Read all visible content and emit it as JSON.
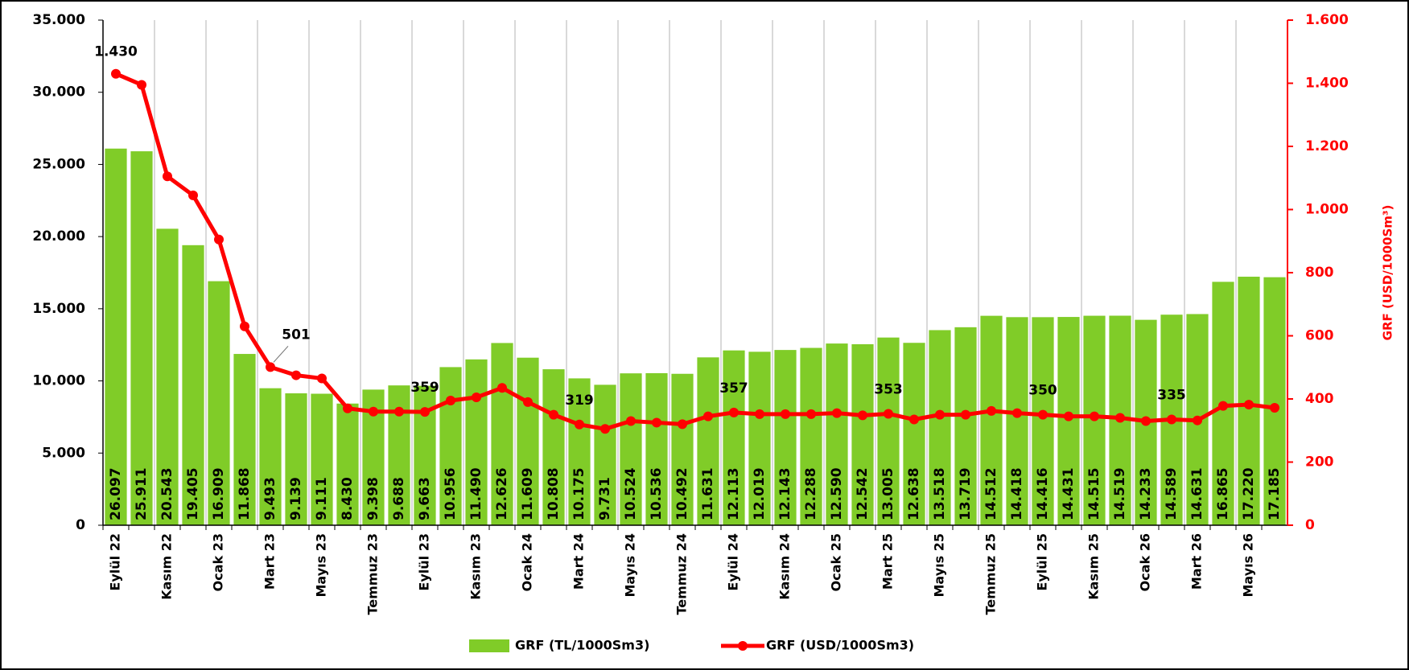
{
  "chart_data": {
    "type": "bar-line",
    "categories": [
      "Eylül 22",
      null,
      "Kasım 22",
      null,
      "Ocak 23",
      null,
      "Mart 23",
      null,
      "Mayıs 23",
      null,
      "Temmuz 23",
      null,
      "Eylül 23",
      null,
      "Kasım 23",
      null,
      "Ocak 24",
      null,
      "Mart 24",
      null,
      "Mayıs 24",
      null,
      "Temmuz 24",
      null,
      "Eylül 24",
      null,
      "Kasım 24",
      null,
      "Ocak 25",
      null,
      "Mart 25",
      null,
      "Mayıs 25",
      null,
      "Temmuz 25",
      null,
      "Eylül 25",
      null,
      "Kasım 25",
      null,
      "Ocak 26",
      null,
      "Mart 26",
      null,
      "Mayıs 26",
      null
    ],
    "series": [
      {
        "name": "GRF (TL/1000Sm3)",
        "color": "#80cc28",
        "type": "bar",
        "values": [
          26097,
          25911,
          20543,
          19405,
          16909,
          11868,
          9493,
          9139,
          9111,
          8430,
          9398,
          9688,
          9663,
          10956,
          11490,
          12626,
          11609,
          10808,
          10175,
          9731,
          10524,
          10536,
          10492,
          11631,
          12113,
          12019,
          12143,
          12288,
          12590,
          12542,
          13005,
          12638,
          13518,
          13719,
          14512,
          14418,
          14416,
          14431,
          14515,
          14519,
          14233,
          14589,
          14631,
          16865,
          17220,
          17185
        ],
        "value_labels": [
          "26.097",
          "25.911",
          "20.543",
          "19.405",
          "16.909",
          "11.868",
          "9.493",
          "9.139",
          "9.111",
          "8.430",
          "9.398",
          "9.688",
          "9.663",
          "10.956",
          "11.490",
          "12.626",
          "11.609",
          "10.808",
          "10.175",
          "9.731",
          "10.524",
          "10.536",
          "10.492",
          "11.631",
          "12.113",
          "12.019",
          "12.143",
          "12.288",
          "12.590",
          "12.542",
          "13.005",
          "12.638",
          "13.518",
          "13.719",
          "14.512",
          "14.418",
          "14.416",
          "14.431",
          "14.515",
          "14.519",
          "14.233",
          "14.589",
          "14.631",
          "16.865",
          "17.220",
          "17.185"
        ]
      },
      {
        "name": "GRF (USD/1000Sm3)",
        "color": "#ff0000",
        "type": "line",
        "axis": "y2",
        "values": [
          1430,
          1395,
          1105,
          1045,
          905,
          630,
          501,
          475,
          465,
          370,
          360,
          360,
          359,
          395,
          405,
          435,
          390,
          350,
          319,
          305,
          330,
          325,
          320,
          345,
          357,
          352,
          352,
          352,
          355,
          348,
          353,
          335,
          350,
          350,
          362,
          355,
          350,
          345,
          345,
          340,
          330,
          335,
          332,
          378,
          382,
          372
        ],
        "value_labels": [
          "1.430",
          null,
          null,
          null,
          null,
          null,
          "501",
          null,
          null,
          null,
          null,
          null,
          "359",
          null,
          null,
          null,
          null,
          null,
          "319",
          null,
          null,
          null,
          null,
          null,
          "357",
          null,
          null,
          null,
          null,
          null,
          "353",
          null,
          null,
          null,
          null,
          null,
          "350",
          null,
          null,
          null,
          null,
          "335",
          null,
          null,
          null,
          null
        ]
      }
    ],
    "ylim": [
      0,
      35000
    ],
    "yticks": [
      0,
      {
        "value": 5000,
        "label": "5.000"
      },
      {
        "value": 10000,
        "label": "10.000"
      },
      {
        "value": 15000,
        "label": "15.000"
      },
      {
        "value": 20000,
        "label": "20.000"
      },
      {
        "value": 25000,
        "label": "25.000"
      },
      {
        "value": 30000,
        "label": "30.000"
      },
      {
        "value": 35000,
        "label": "35.000"
      }
    ],
    "y2lim": [
      0,
      1600
    ],
    "y2ticks": [
      0,
      200,
      400,
      600,
      800,
      {
        "value": 1000,
        "label": "1.000"
      },
      {
        "value": 1200,
        "label": "1.200"
      },
      {
        "value": 1400,
        "label": "1.400"
      },
      {
        "value": 1600,
        "label": "1.600"
      }
    ],
    "y2label": "GRF (USD/1000Sm³)",
    "legend": "bottom"
  }
}
